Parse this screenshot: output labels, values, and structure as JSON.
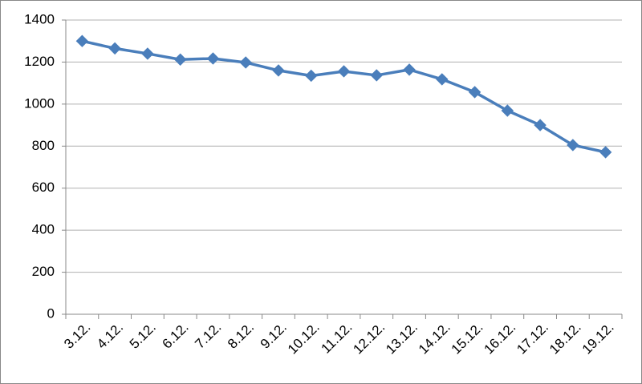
{
  "chart_data": {
    "type": "line",
    "categories": [
      "3.12.",
      "4.12.",
      "5.12.",
      "6.12.",
      "7.12.",
      "8.12.",
      "9.12.",
      "10.12.",
      "11.12.",
      "12.12.",
      "13.12.",
      "14.12.",
      "15.12.",
      "16.12.",
      "17.12.",
      "18.12.",
      "19.12."
    ],
    "values": [
      1300,
      1265,
      1240,
      1212,
      1217,
      1198,
      1160,
      1135,
      1156,
      1137,
      1164,
      1118,
      1057,
      969,
      900,
      805,
      771
    ],
    "color": "#4a7ebb",
    "ylim": [
      0,
      1400
    ],
    "yticks": [
      0,
      200,
      400,
      600,
      800,
      1000,
      1200,
      1400
    ],
    "grid": true
  }
}
